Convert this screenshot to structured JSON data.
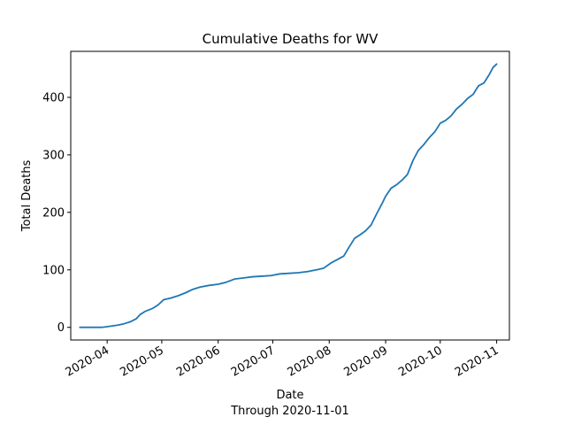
{
  "chart_data": {
    "type": "line",
    "title": "Cumulative Deaths for WV",
    "xlabel": "Date",
    "xlabel_sub": "Through 2020-11-01",
    "ylabel": "Total Deaths",
    "xlim": [
      "2020-03-12",
      "2020-11-08"
    ],
    "ylim": [
      -22,
      480
    ],
    "y_ticks": [
      0,
      100,
      200,
      300,
      400
    ],
    "x_ticks": [
      "2020-04-01",
      "2020-05-01",
      "2020-06-01",
      "2020-07-01",
      "2020-08-01",
      "2020-09-01",
      "2020-10-01",
      "2020-11-01"
    ],
    "x_tick_labels": [
      "2020-04",
      "2020-05",
      "2020-06",
      "2020-07",
      "2020-08",
      "2020-09",
      "2020-10",
      "2020-11"
    ],
    "grid": false,
    "line_color": "#1f77b4",
    "series": [
      {
        "x": [
          "2020-03-17",
          "2020-03-24",
          "2020-03-29",
          "2020-04-03",
          "2020-04-07",
          "2020-04-10",
          "2020-04-14",
          "2020-04-17",
          "2020-04-19",
          "2020-04-22",
          "2020-04-26",
          "2020-04-29",
          "2020-05-02",
          "2020-05-06",
          "2020-05-10",
          "2020-05-14",
          "2020-05-18",
          "2020-05-22",
          "2020-05-27",
          "2020-06-01",
          "2020-06-05",
          "2020-06-10",
          "2020-06-15",
          "2020-06-20",
          "2020-06-25",
          "2020-06-30",
          "2020-07-05",
          "2020-07-10",
          "2020-07-15",
          "2020-07-20",
          "2020-07-25",
          "2020-07-29",
          "2020-08-02",
          "2020-08-05",
          "2020-08-09",
          "2020-08-12",
          "2020-08-15",
          "2020-08-18",
          "2020-08-21",
          "2020-08-24",
          "2020-08-27",
          "2020-08-30",
          "2020-09-01",
          "2020-09-04",
          "2020-09-07",
          "2020-09-10",
          "2020-09-13",
          "2020-09-16",
          "2020-09-19",
          "2020-09-22",
          "2020-09-25",
          "2020-09-28",
          "2020-10-01",
          "2020-10-04",
          "2020-10-07",
          "2020-10-10",
          "2020-10-13",
          "2020-10-16",
          "2020-10-19",
          "2020-10-22",
          "2020-10-25",
          "2020-10-28",
          "2020-10-30",
          "2020-11-01"
        ],
        "y": [
          0,
          0,
          0,
          2,
          4,
          6,
          10,
          15,
          22,
          28,
          33,
          39,
          48,
          51,
          55,
          60,
          66,
          70,
          73,
          75,
          78,
          84,
          86,
          88,
          89,
          90,
          93,
          94,
          95,
          97,
          100,
          103,
          112,
          117,
          124,
          140,
          155,
          161,
          168,
          178,
          197,
          215,
          228,
          242,
          248,
          256,
          266,
          290,
          308,
          318,
          330,
          340,
          355,
          360,
          368,
          380,
          388,
          398,
          405,
          420,
          425,
          440,
          452,
          458
        ]
      }
    ]
  }
}
